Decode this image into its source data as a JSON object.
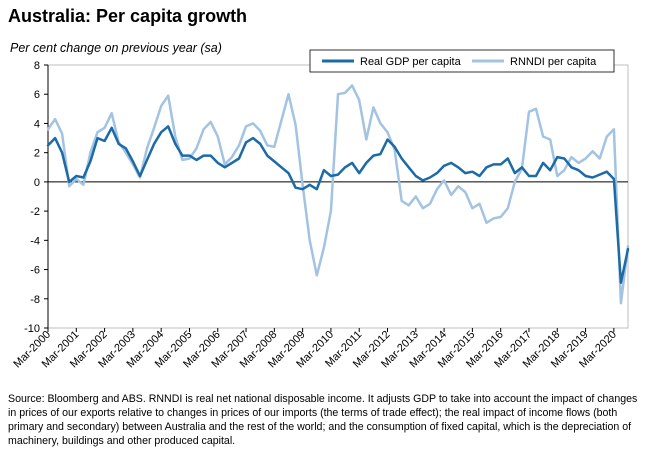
{
  "title": "Australia: Per capita growth",
  "subtitle": "Per cent change on previous year (sa)",
  "source": "Source: Bloomberg and ABS. RNNDI is real net national disposable income.  It adjusts GDP to take into account the impact of changes in prices of our exports relative to changes in prices of our imports (the terms of trade effect); the real impact of income flows (both primary and secondary) between Australia and the rest of the world; and the consumption of fixed capital, which is the depreciation of machinery, buildings and other produced capital.",
  "chart_data": {
    "type": "line",
    "ylim": [
      -10,
      8
    ],
    "yticks": [
      "8",
      "6",
      "4",
      "2",
      "0",
      "-2",
      "-4",
      "-6",
      "-8",
      "-10"
    ],
    "xticks": [
      "Mar-2000",
      "Mar-2001",
      "Mar-2002",
      "Mar-2003",
      "Mar-2004",
      "Mar-2005",
      "Mar-2006",
      "Mar-2007",
      "Mar-2008",
      "Mar-2009",
      "Mar-2010",
      "Mar-2011",
      "Mar-2012",
      "Mar-2013",
      "Mar-2014",
      "Mar-2015",
      "Mar-2016",
      "Mar-2017",
      "Mar-2018",
      "Mar-2019",
      "Mar-2020"
    ],
    "x_start": "Mar-2000",
    "x_end": "Dec-2020",
    "legend_position": "top-right",
    "series": [
      {
        "name": "Real GDP per capita",
        "color": "#1c6aa6",
        "values": [
          2.5,
          3.0,
          2.0,
          0.0,
          0.4,
          0.3,
          1.4,
          3.0,
          2.8,
          3.7,
          2.6,
          2.3,
          1.4,
          0.4,
          1.5,
          2.6,
          3.4,
          3.8,
          2.6,
          1.8,
          1.8,
          1.5,
          1.8,
          1.8,
          1.3,
          1.0,
          1.3,
          1.6,
          2.7,
          3.0,
          2.6,
          1.8,
          1.4,
          1.0,
          0.6,
          -0.4,
          -0.5,
          -0.2,
          -0.5,
          0.8,
          0.4,
          0.5,
          1.0,
          1.3,
          0.6,
          1.3,
          1.8,
          1.9,
          2.9,
          2.4,
          1.6,
          1.0,
          0.4,
          0.1,
          0.3,
          0.6,
          1.1,
          1.3,
          1.0,
          0.6,
          0.7,
          0.4,
          1.0,
          1.2,
          1.2,
          1.6,
          0.6,
          1.0,
          0.4,
          0.4,
          1.3,
          0.8,
          1.7,
          1.6,
          1.0,
          0.8,
          0.4,
          0.3,
          0.5,
          0.7,
          0.2,
          -6.9,
          -4.6
        ]
      },
      {
        "name": "RNNDI per capita",
        "color": "#a3c3e3",
        "values": [
          3.6,
          4.3,
          3.3,
          -0.3,
          0.2,
          -0.2,
          2.0,
          3.4,
          3.7,
          4.7,
          2.7,
          2.0,
          1.2,
          0.3,
          2.3,
          3.7,
          5.2,
          5.9,
          3.1,
          1.5,
          1.6,
          2.3,
          3.6,
          4.1,
          3.1,
          1.2,
          1.7,
          2.5,
          3.8,
          4.0,
          3.5,
          2.5,
          2.4,
          4.2,
          6.0,
          3.9,
          -0.2,
          -4.0,
          -6.4,
          -4.5,
          -2.0,
          6.0,
          6.1,
          6.6,
          5.6,
          2.9,
          5.1,
          4.0,
          3.4,
          2.2,
          -1.3,
          -1.6,
          -1.0,
          -1.8,
          -1.5,
          -0.5,
          0.1,
          -0.9,
          -0.3,
          -0.7,
          -1.8,
          -1.5,
          -2.8,
          -2.5,
          -2.4,
          -1.8,
          0.0,
          0.9,
          4.8,
          5.0,
          3.1,
          2.9,
          0.4,
          0.8,
          1.7,
          1.3,
          1.6,
          2.1,
          1.6,
          3.1,
          3.6,
          -8.3,
          -4.4
        ]
      }
    ]
  }
}
